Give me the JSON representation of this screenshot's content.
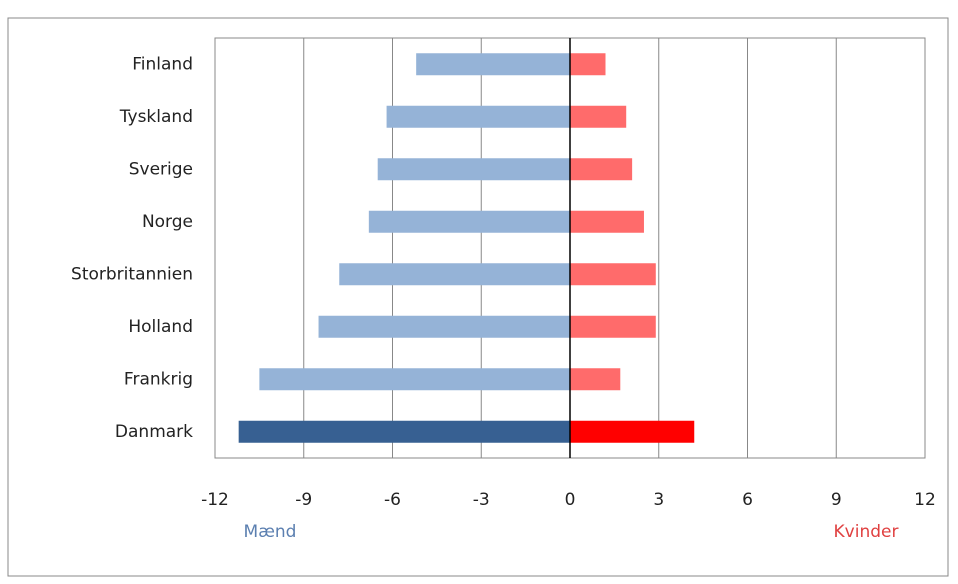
{
  "chart_data": {
    "type": "bar",
    "orientation": "horizontal",
    "categories": [
      "Finland",
      "Tyskland",
      "Sverige",
      "Norge",
      "Storbritannien",
      "Holland",
      "Frankrig",
      "Danmark"
    ],
    "series": [
      {
        "name": "Mænd",
        "color": "#95b3d7",
        "colors": [
          "#95b3d7",
          "#95b3d7",
          "#95b3d7",
          "#95b3d7",
          "#95b3d7",
          "#95b3d7",
          "#95b3d7",
          "#376092"
        ],
        "values": [
          -5.2,
          -6.2,
          -6.5,
          -6.8,
          -7.8,
          -8.5,
          -10.5,
          -11.2
        ]
      },
      {
        "name": "Kvinder",
        "color": "#ff6b6b",
        "colors": [
          "#ff6b6b",
          "#ff6b6b",
          "#ff6b6b",
          "#ff6b6b",
          "#ff6b6b",
          "#ff6b6b",
          "#ff6b6b",
          "#ff0000"
        ],
        "values": [
          1.2,
          1.9,
          2.1,
          2.5,
          2.9,
          2.9,
          1.7,
          4.2
        ]
      }
    ],
    "xlim": [
      -12,
      12
    ],
    "xticks": [
      -12,
      -9,
      -6,
      -3,
      0,
      3,
      6,
      9,
      12
    ],
    "grid": true
  }
}
